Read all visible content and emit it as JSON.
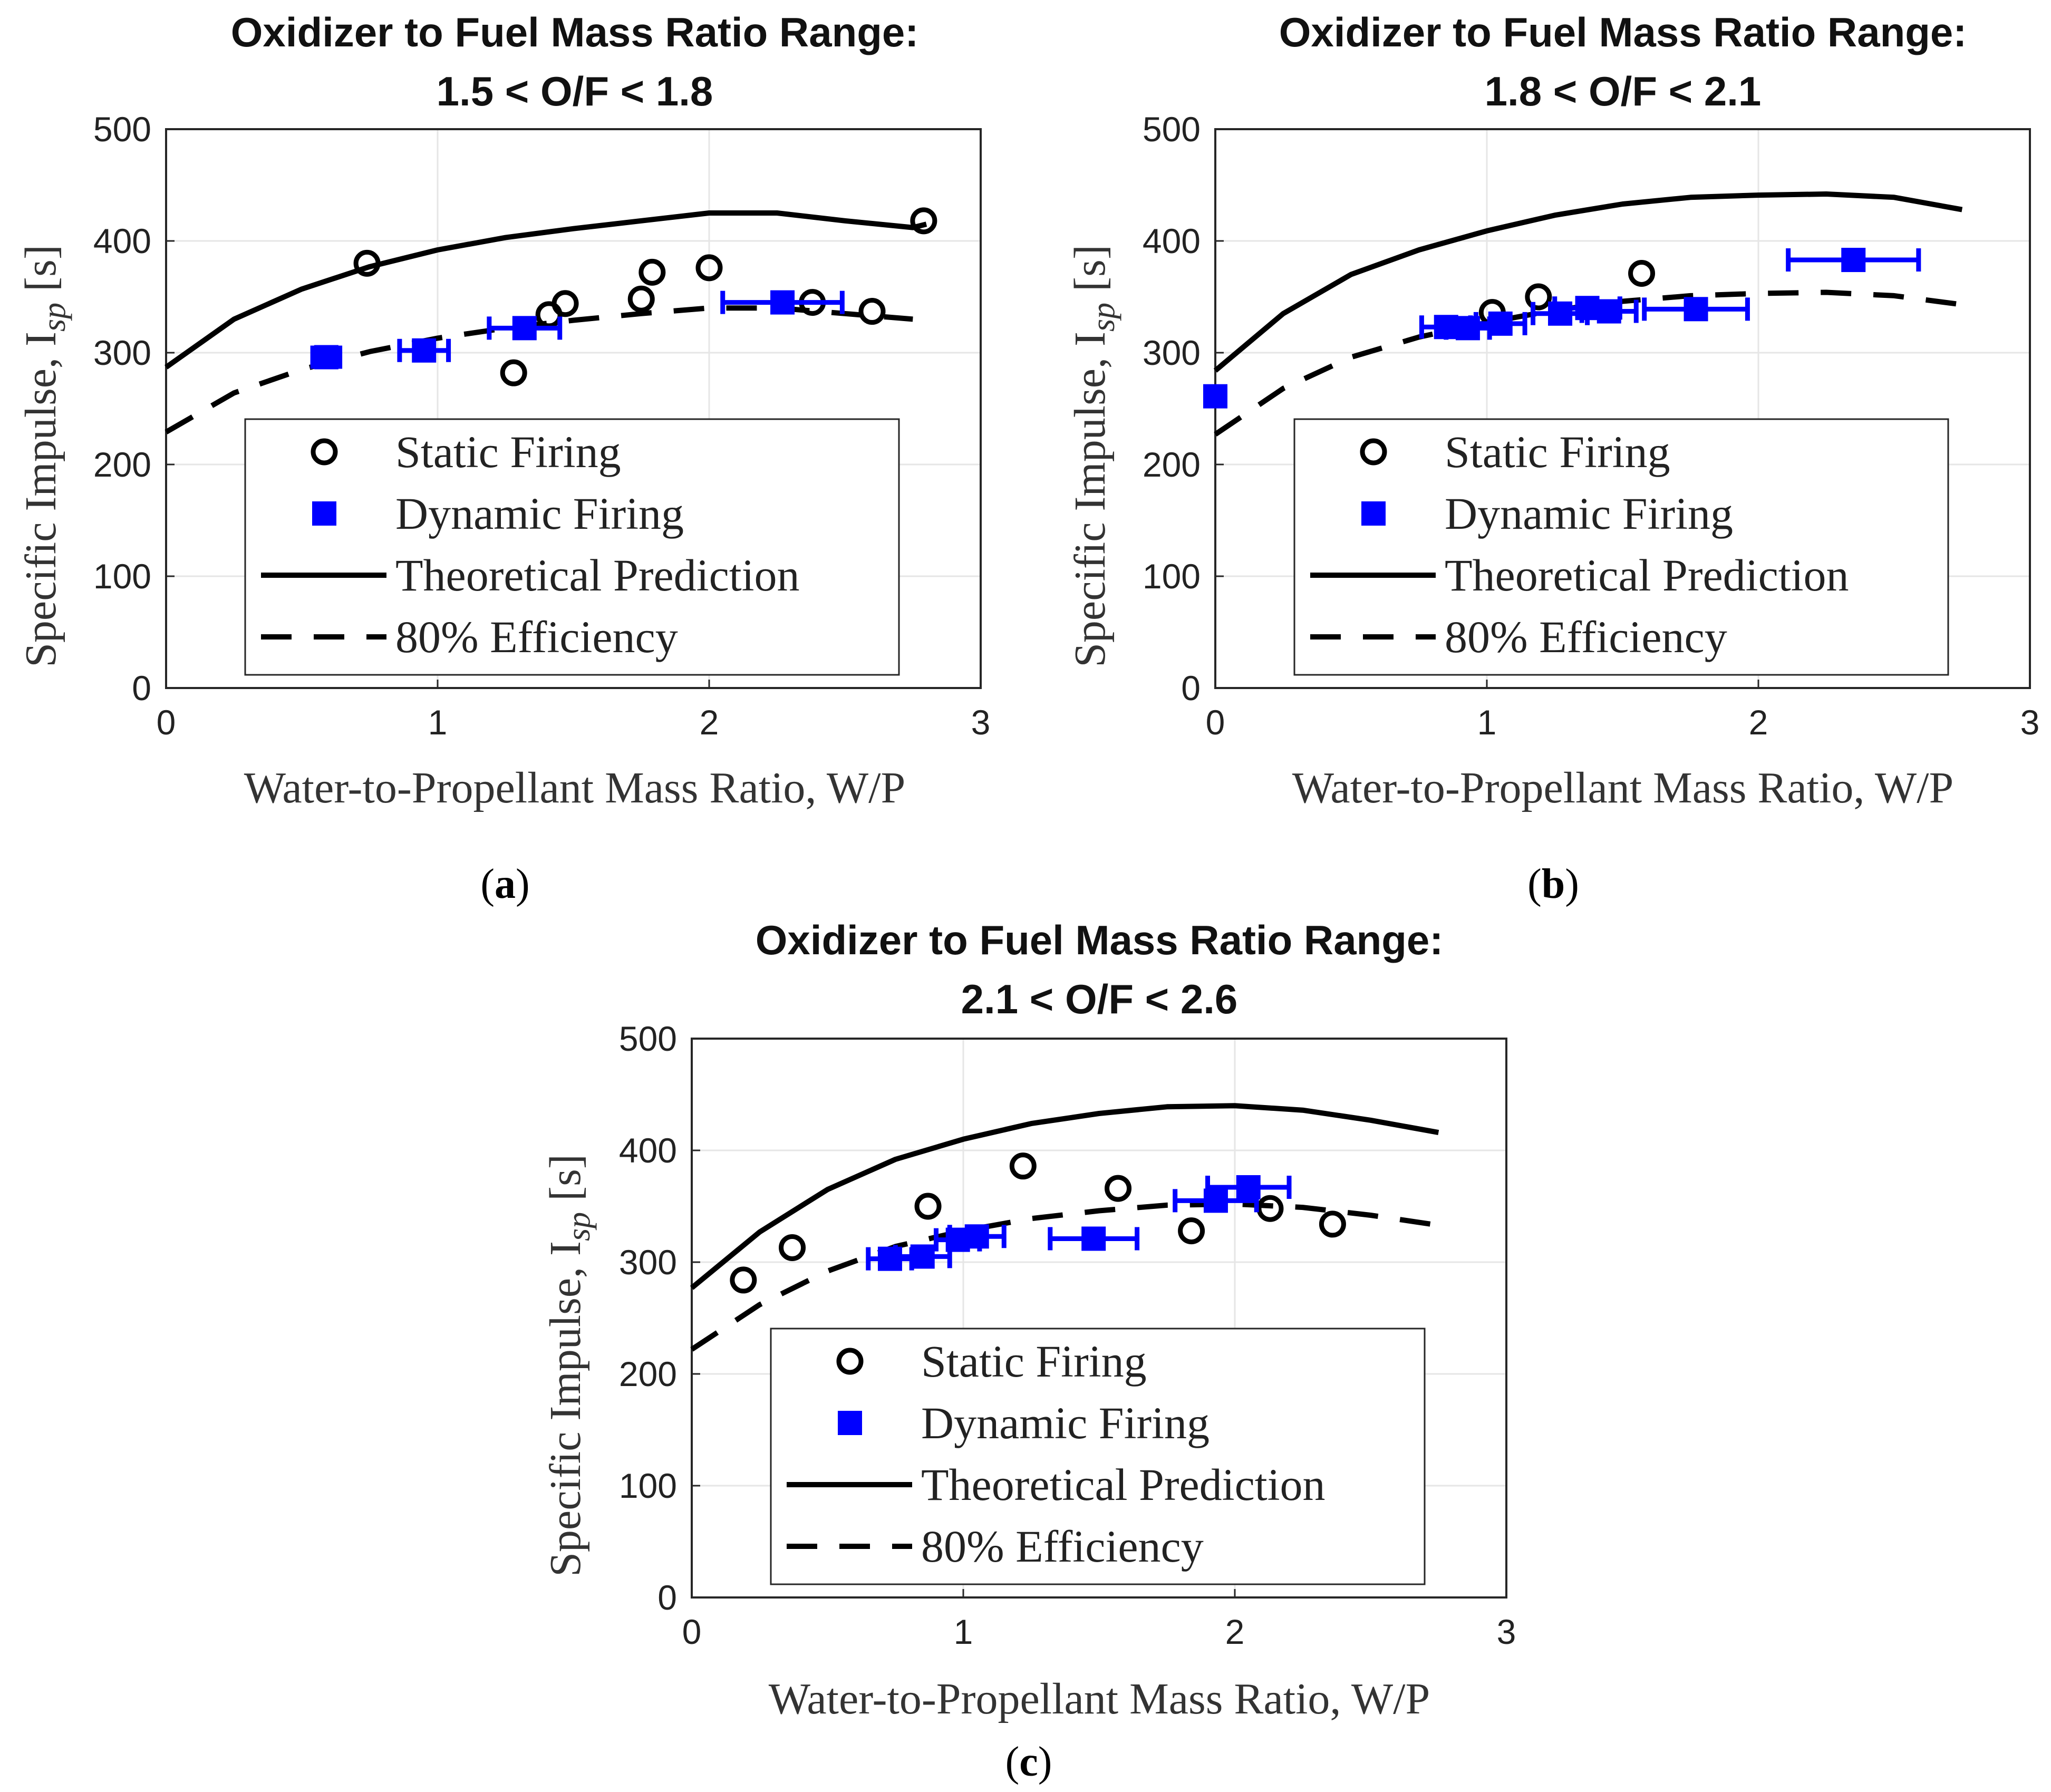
{
  "figure": {
    "colors": {
      "static": "#000000",
      "dynamic": "#0000ff",
      "theory": "#000000",
      "grid": "#e6e6e6",
      "axis": "#262626"
    }
  },
  "chart_data": [
    {
      "type": "scatter",
      "panel_label": "a",
      "title": "Oxidizer to Fuel Mass Ratio Range:",
      "subtitle": "1.5 < O/F < 1.8",
      "xlabel": "Water-to-Propellant Mass Ratio, W/P",
      "ylabel": "Specific Impulse, I",
      "ylabel_sub": "sp",
      "ylabel_unit": " [s]",
      "xlim": [
        0,
        3
      ],
      "ylim": [
        0,
        500
      ],
      "xticks": [
        0,
        1,
        2,
        3
      ],
      "yticks": [
        0,
        100,
        200,
        300,
        400,
        500
      ],
      "grid": true,
      "legend_position": "lower-right",
      "legend": [
        "Static Firing",
        "Dynamic Firing",
        "Theoretical Prediction",
        "80% Efficiency"
      ],
      "series": [
        {
          "name": "Static Firing",
          "marker": "circle",
          "points": [
            [
              0.74,
              380
            ],
            [
              1.28,
              282
            ],
            [
              1.41,
              334
            ],
            [
              1.47,
              344
            ],
            [
              1.75,
              348
            ],
            [
              1.79,
              372
            ],
            [
              2.0,
              376
            ],
            [
              2.38,
              345
            ],
            [
              2.6,
              337
            ],
            [
              2.79,
              418
            ]
          ]
        },
        {
          "name": "Dynamic Firing",
          "marker": "square",
          "points": [
            [
              0.59,
              296,
              0.05
            ],
            [
              0.95,
              302,
              0.09
            ],
            [
              1.32,
              322,
              0.13
            ],
            [
              2.27,
              345,
              0.22
            ]
          ]
        },
        {
          "name": "Theoretical Prediction",
          "style": "solid",
          "points": [
            [
              0,
              287
            ],
            [
              0.25,
              330
            ],
            [
              0.5,
              357
            ],
            [
              0.75,
              377
            ],
            [
              1.0,
              392
            ],
            [
              1.25,
              403
            ],
            [
              1.5,
              411
            ],
            [
              1.75,
              418
            ],
            [
              2.0,
              425
            ],
            [
              2.25,
              425
            ],
            [
              2.5,
              418
            ],
            [
              2.75,
              412
            ],
            [
              2.8,
              415
            ]
          ]
        },
        {
          "name": "80% Efficiency",
          "style": "dashed",
          "points": [
            [
              0,
              229
            ],
            [
              0.25,
              264
            ],
            [
              0.5,
              285
            ],
            [
              0.75,
              301
            ],
            [
              1.0,
              313
            ],
            [
              1.25,
              322
            ],
            [
              1.5,
              329
            ],
            [
              1.75,
              335
            ],
            [
              2.0,
              340
            ],
            [
              2.25,
              340
            ],
            [
              2.5,
              335
            ],
            [
              2.75,
              330
            ]
          ]
        }
      ]
    },
    {
      "type": "scatter",
      "panel_label": "b",
      "title": "Oxidizer to Fuel Mass Ratio Range:",
      "subtitle": "1.8 < O/F < 2.1",
      "xlabel": "Water-to-Propellant Mass Ratio, W/P",
      "ylabel": "Specific Impulse, I",
      "ylabel_sub": "sp",
      "ylabel_unit": " [s]",
      "xlim": [
        0,
        3
      ],
      "ylim": [
        0,
        500
      ],
      "xticks": [
        0,
        1,
        2,
        3
      ],
      "yticks": [
        0,
        100,
        200,
        300,
        400,
        500
      ],
      "grid": true,
      "legend_position": "lower-right",
      "legend": [
        "Static Firing",
        "Dynamic Firing",
        "Theoretical Prediction",
        "80% Efficiency"
      ],
      "series": [
        {
          "name": "Static Firing",
          "marker": "circle",
          "points": [
            [
              1.02,
              336
            ],
            [
              1.19,
              350
            ],
            [
              1.57,
              371
            ]
          ]
        },
        {
          "name": "Dynamic Firing",
          "marker": "square",
          "points": [
            [
              0.0,
              261,
              0.0
            ],
            [
              0.85,
              323,
              0.09
            ],
            [
              0.93,
              322,
              0.08
            ],
            [
              1.05,
              326,
              0.09
            ],
            [
              1.27,
              335,
              0.1
            ],
            [
              1.37,
              340,
              0.12
            ],
            [
              1.45,
              337,
              0.1
            ],
            [
              1.77,
              339,
              0.19
            ],
            [
              2.35,
              383,
              0.24
            ]
          ]
        },
        {
          "name": "Theoretical Prediction",
          "style": "solid",
          "points": [
            [
              0,
              284
            ],
            [
              0.25,
              335
            ],
            [
              0.5,
              370
            ],
            [
              0.75,
              392
            ],
            [
              1.0,
              409
            ],
            [
              1.25,
              423
            ],
            [
              1.5,
              433
            ],
            [
              1.75,
              439
            ],
            [
              2.0,
              441
            ],
            [
              2.25,
              442
            ],
            [
              2.5,
              439
            ],
            [
              2.75,
              428
            ]
          ]
        },
        {
          "name": "80% Efficiency",
          "style": "dashed",
          "points": [
            [
              0,
              227
            ],
            [
              0.25,
              268
            ],
            [
              0.5,
              296
            ],
            [
              0.75,
              314
            ],
            [
              1.0,
              327
            ],
            [
              1.25,
              338
            ],
            [
              1.5,
              346
            ],
            [
              1.75,
              351
            ],
            [
              2.0,
              353
            ],
            [
              2.25,
              354
            ],
            [
              2.5,
              351
            ],
            [
              2.75,
              343
            ]
          ]
        }
      ]
    },
    {
      "type": "scatter",
      "panel_label": "c",
      "title": "Oxidizer to Fuel Mass Ratio Range:",
      "subtitle": "2.1 < O/F < 2.6",
      "xlabel": "Water-to-Propellant Mass Ratio, W/P",
      "ylabel": "Specific Impulse, I",
      "ylabel_sub": "sp",
      "ylabel_unit": " [s]",
      "xlim": [
        0,
        3
      ],
      "ylim": [
        0,
        500
      ],
      "xticks": [
        0,
        1,
        2,
        3
      ],
      "yticks": [
        0,
        100,
        200,
        300,
        400,
        500
      ],
      "grid": true,
      "legend_position": "lower-right",
      "legend": [
        "Static Firing",
        "Dynamic Firing",
        "Theoretical Prediction",
        "80% Efficiency"
      ],
      "series": [
        {
          "name": "Static Firing",
          "marker": "circle",
          "points": [
            [
              0.19,
              284
            ],
            [
              0.37,
              313
            ],
            [
              0.87,
              350
            ],
            [
              1.22,
              386
            ],
            [
              1.57,
              366
            ],
            [
              1.84,
              328
            ],
            [
              2.13,
              348
            ],
            [
              2.36,
              334
            ]
          ]
        },
        {
          "name": "Dynamic Firing",
          "marker": "square",
          "points": [
            [
              0.73,
              303,
              0.08
            ],
            [
              0.85,
              305,
              0.1
            ],
            [
              0.98,
              320,
              0.08
            ],
            [
              1.05,
              323,
              0.1
            ],
            [
              1.48,
              321,
              0.16
            ],
            [
              1.93,
              355,
              0.15
            ],
            [
              2.05,
              367,
              0.15
            ]
          ]
        },
        {
          "name": "Theoretical Prediction",
          "style": "solid",
          "points": [
            [
              0,
              277
            ],
            [
              0.25,
              327
            ],
            [
              0.5,
              365
            ],
            [
              0.75,
              392
            ],
            [
              1.0,
              410
            ],
            [
              1.25,
              424
            ],
            [
              1.5,
              433
            ],
            [
              1.75,
              439
            ],
            [
              2.0,
              440
            ],
            [
              2.25,
              436
            ],
            [
              2.5,
              427
            ],
            [
              2.75,
              416
            ]
          ]
        },
        {
          "name": "80% Efficiency",
          "style": "dashed",
          "points": [
            [
              0,
              222
            ],
            [
              0.25,
              262
            ],
            [
              0.5,
              292
            ],
            [
              0.75,
              314
            ],
            [
              1.0,
              328
            ],
            [
              1.25,
              339
            ],
            [
              1.5,
              346
            ],
            [
              1.75,
              351
            ],
            [
              2.0,
              352
            ],
            [
              2.25,
              349
            ],
            [
              2.5,
              342
            ],
            [
              2.75,
              333
            ]
          ]
        }
      ]
    }
  ]
}
